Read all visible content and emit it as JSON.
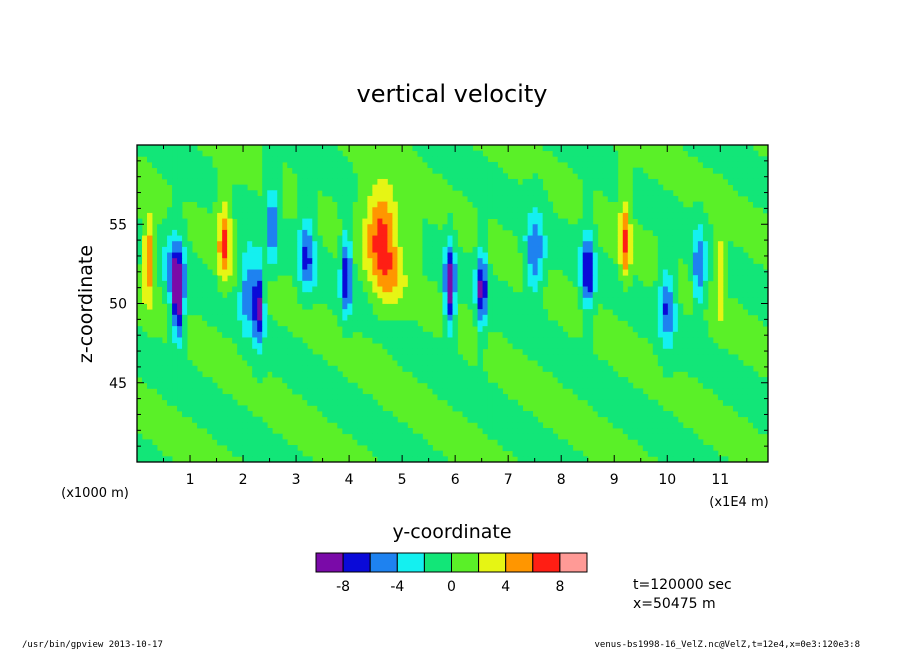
{
  "chart_data": {
    "type": "heatmap",
    "title": "vertical velocity",
    "xlabel": "y-coordinate",
    "ylabel": "z-coordinate",
    "x_unit_note": "(x1000 m)",
    "x_scale_note": "(x1E4 m)",
    "xlim": [
      0,
      11.9
    ],
    "ylim": [
      40,
      60
    ],
    "x_ticks": [
      "1",
      "2",
      "3",
      "4",
      "5",
      "6",
      "7",
      "8",
      "9",
      "10",
      "11"
    ],
    "y_ticks": [
      "45",
      "50",
      "55"
    ],
    "colorbar": {
      "levels": [
        -10,
        -8,
        -6,
        -4,
        -2,
        0,
        2,
        4,
        6,
        8,
        10
      ],
      "colors": [
        "#7a0aa8",
        "#0a0ad8",
        "#1e82f0",
        "#14f0f0",
        "#12e678",
        "#5af028",
        "#e6f514",
        "#ff9600",
        "#ff1e14",
        "#ff9a96"
      ],
      "tick_labels": [
        "-8",
        "-4",
        "0",
        "4",
        "8"
      ],
      "tick_values": [
        -8,
        -4,
        0,
        4,
        8
      ]
    },
    "features": [
      {
        "y": 0.22,
        "z": 53,
        "w": 0.1,
        "v": 6
      },
      {
        "y": 0.72,
        "z": 52,
        "w": 0.18,
        "v": -6
      },
      {
        "y": 0.78,
        "z": 50,
        "w": 0.1,
        "v": -8
      },
      {
        "y": 1.65,
        "z": 54,
        "w": 0.12,
        "v": 6
      },
      {
        "y": 2.1,
        "z": 51,
        "w": 0.16,
        "v": -6
      },
      {
        "y": 2.3,
        "z": 50,
        "w": 0.1,
        "v": -8
      },
      {
        "y": 2.55,
        "z": 55,
        "w": 0.1,
        "v": -6
      },
      {
        "y": 3.2,
        "z": 53,
        "w": 0.15,
        "v": -6
      },
      {
        "y": 3.95,
        "z": 52,
        "w": 0.1,
        "v": -8
      },
      {
        "y": 4.6,
        "z": 55,
        "w": 0.3,
        "v": 6
      },
      {
        "y": 4.7,
        "z": 52,
        "w": 0.3,
        "v": 4
      },
      {
        "y": 5.25,
        "z": 54,
        "w": 0.1,
        "v": 2
      },
      {
        "y": 5.9,
        "z": 51,
        "w": 0.1,
        "v": -10
      },
      {
        "y": 6.5,
        "z": 51,
        "w": 0.1,
        "v": -8
      },
      {
        "y": 7.5,
        "z": 53,
        "w": 0.18,
        "v": -6
      },
      {
        "y": 8.5,
        "z": 52,
        "w": 0.12,
        "v": -8
      },
      {
        "y": 9.2,
        "z": 54,
        "w": 0.1,
        "v": 6
      },
      {
        "y": 10.0,
        "z": 50,
        "w": 0.15,
        "v": -6
      },
      {
        "y": 10.6,
        "z": 52,
        "w": 0.12,
        "v": -6
      },
      {
        "y": 11.0,
        "z": 52,
        "w": 0.1,
        "v": 4
      }
    ]
  },
  "annotations": {
    "time": "t=120000 sec",
    "xpos": "x=50475 m"
  },
  "footer": {
    "left": "/usr/bin/gpview  2013-10-17",
    "right": "venus-bs1998-16_VelZ.nc@VelZ,t=12e4,x=0e3:120e3:8"
  }
}
